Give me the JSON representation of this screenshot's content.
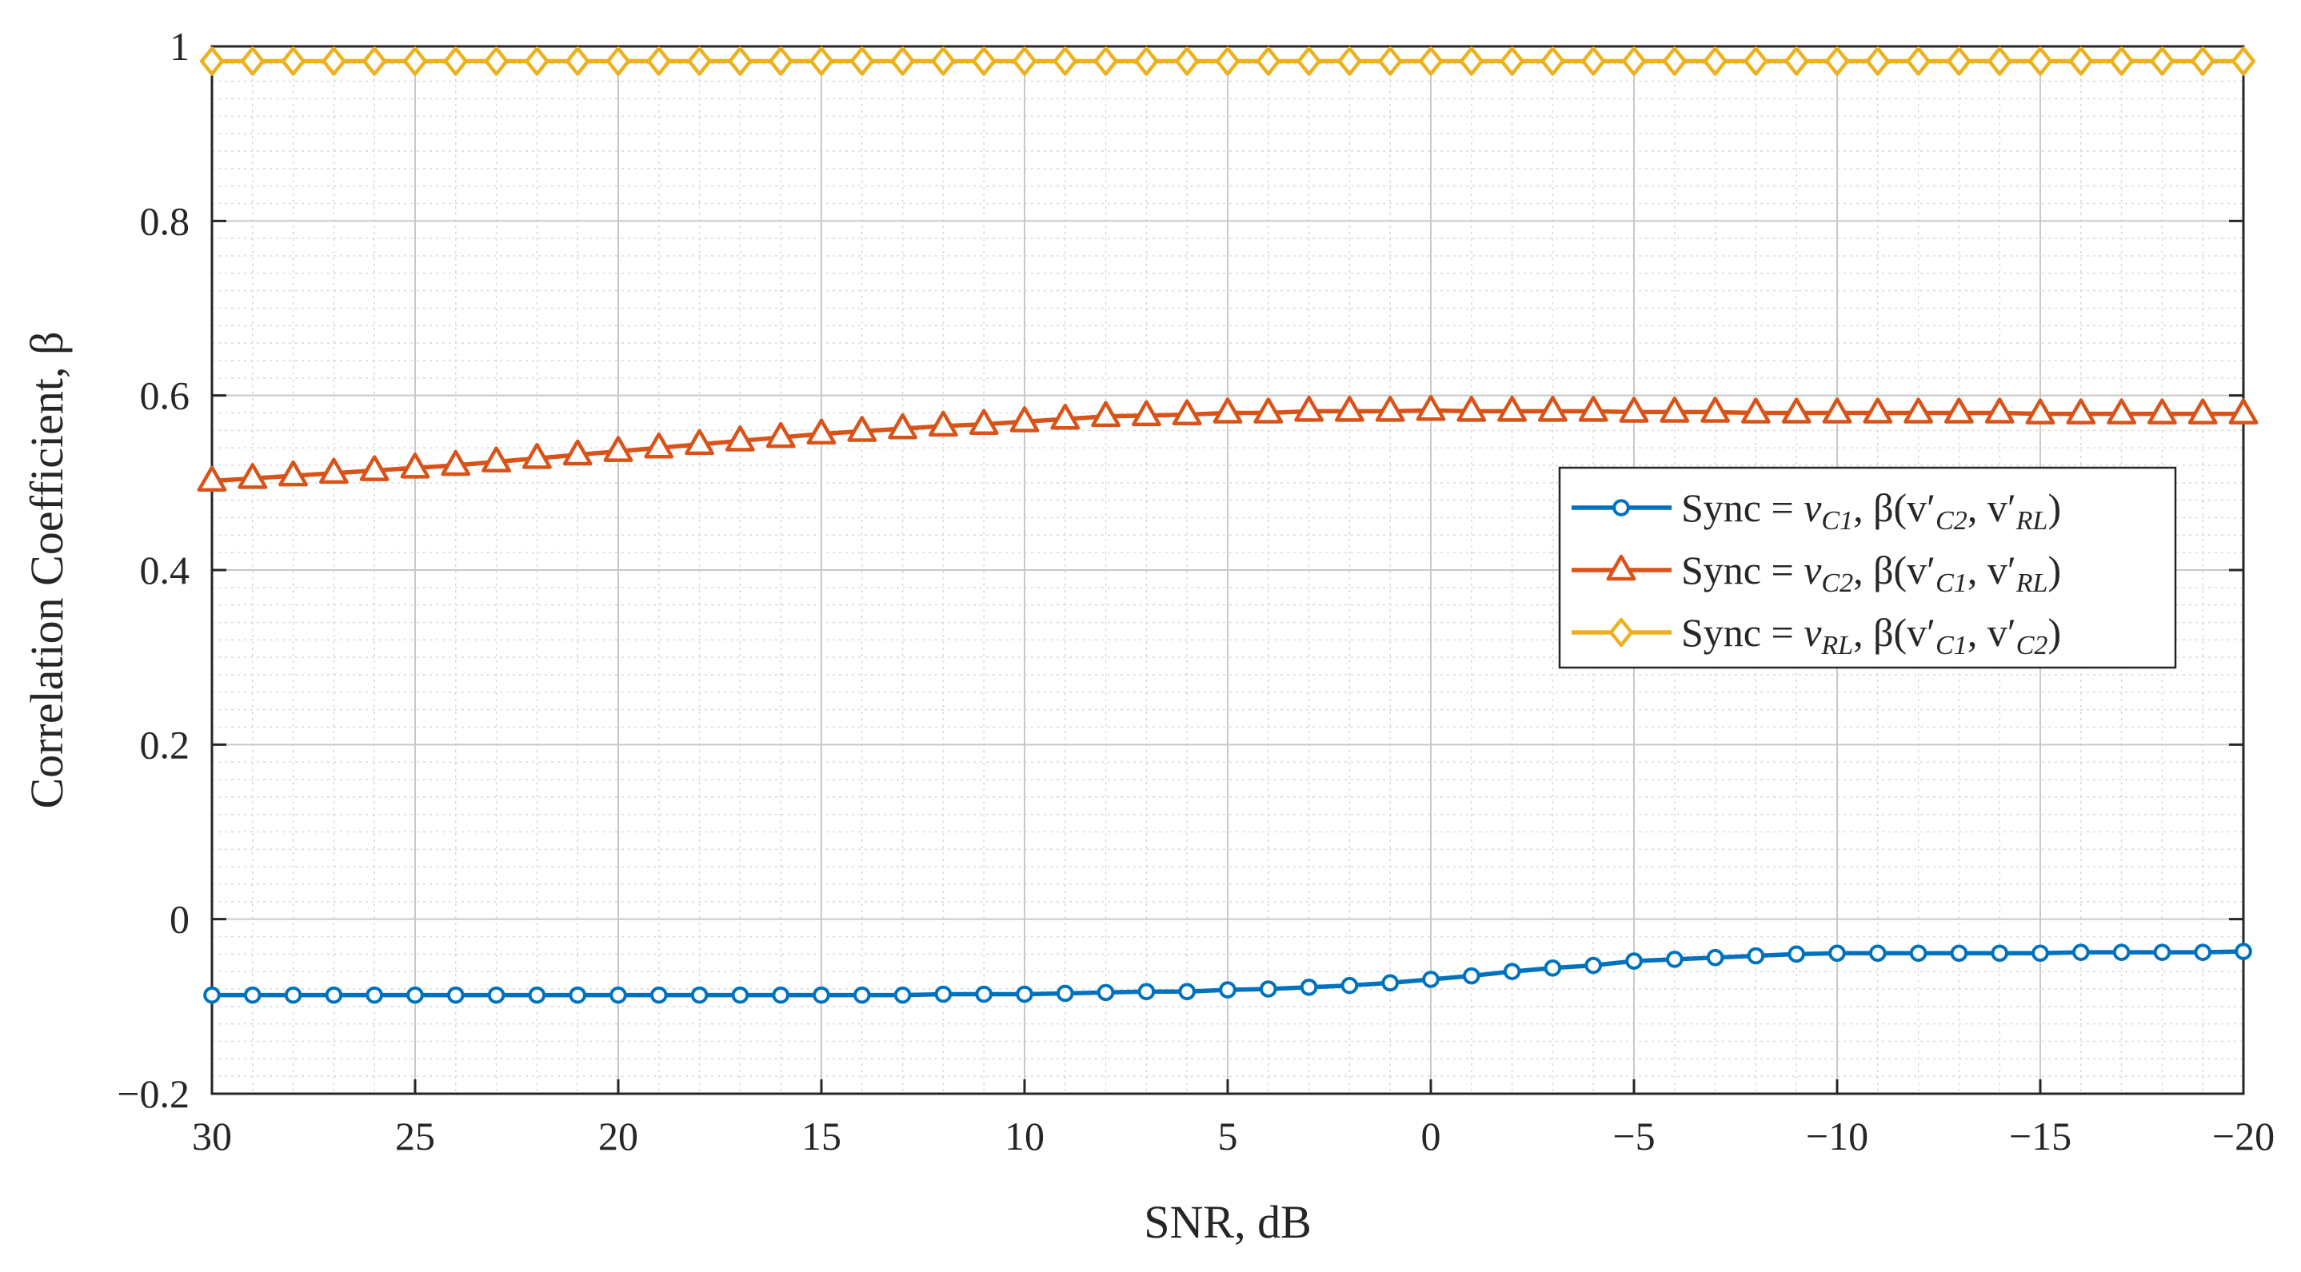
{
  "chart_data": {
    "type": "line",
    "title": "",
    "xlabel": "SNR, dB",
    "ylabel": "Correlation Coefficient, β",
    "xlim": [
      30,
      -20
    ],
    "ylim": [
      -0.2,
      1
    ],
    "x_reversed": true,
    "grid": true,
    "minor_grid": true,
    "legend_position": "center-right",
    "xticks": [
      30,
      25,
      20,
      15,
      10,
      5,
      0,
      -5,
      -10,
      -15,
      -20
    ],
    "xtick_labels": [
      "30",
      "25",
      "20",
      "15",
      "10",
      "5",
      "0",
      "−5",
      "−10",
      "−15",
      "−20"
    ],
    "yticks": [
      -0.2,
      0,
      0.2,
      0.4,
      0.6,
      0.8,
      1
    ],
    "ytick_labels": [
      "−0.2",
      "0",
      "0.2",
      "0.4",
      "0.6",
      "0.8",
      "1"
    ],
    "x": [
      30,
      29,
      28,
      27,
      26,
      25,
      24,
      23,
      22,
      21,
      20,
      19,
      18,
      17,
      16,
      15,
      14,
      13,
      12,
      11,
      10,
      9,
      8,
      7,
      6,
      5,
      4,
      3,
      2,
      1,
      0,
      -1,
      -2,
      -3,
      -4,
      -5,
      -6,
      -7,
      -8,
      -9,
      -10,
      -11,
      -12,
      -13,
      -14,
      -15,
      -16,
      -17,
      -18,
      -19,
      -20
    ],
    "series": [
      {
        "name": "Sync = v_C1, β(v'_C2, v'_RL)",
        "legend_main": "Sync = ",
        "legend_var": "v",
        "legend_var_sub": "C1",
        "legend_beta": ", β(v′",
        "legend_arg1_sub": "C2",
        "legend_mid": ", v′",
        "legend_arg2_sub": "RL",
        "legend_end": ")",
        "color": "#0072BD",
        "marker": "circle",
        "values": [
          -0.087,
          -0.087,
          -0.087,
          -0.087,
          -0.087,
          -0.087,
          -0.087,
          -0.087,
          -0.087,
          -0.087,
          -0.087,
          -0.087,
          -0.087,
          -0.087,
          -0.087,
          -0.087,
          -0.087,
          -0.087,
          -0.086,
          -0.086,
          -0.086,
          -0.085,
          -0.084,
          -0.083,
          -0.083,
          -0.081,
          -0.08,
          -0.078,
          -0.076,
          -0.073,
          -0.069,
          -0.065,
          -0.06,
          -0.056,
          -0.053,
          -0.048,
          -0.046,
          -0.044,
          -0.042,
          -0.04,
          -0.039,
          -0.039,
          -0.039,
          -0.039,
          -0.039,
          -0.039,
          -0.038,
          -0.038,
          -0.038,
          -0.038,
          -0.037
        ]
      },
      {
        "name": "Sync = v_C2, β(v'_C1, v'_RL)",
        "legend_main": "Sync = ",
        "legend_var": "v",
        "legend_var_sub": "C2",
        "legend_beta": ", β(v′",
        "legend_arg1_sub": "C1",
        "legend_mid": ", v′",
        "legend_arg2_sub": "RL",
        "legend_end": ")",
        "color": "#D95319",
        "marker": "triangle",
        "values": [
          0.502,
          0.505,
          0.508,
          0.511,
          0.514,
          0.517,
          0.52,
          0.524,
          0.528,
          0.532,
          0.536,
          0.54,
          0.544,
          0.548,
          0.552,
          0.556,
          0.559,
          0.562,
          0.565,
          0.567,
          0.57,
          0.573,
          0.576,
          0.577,
          0.578,
          0.58,
          0.58,
          0.582,
          0.582,
          0.582,
          0.583,
          0.582,
          0.582,
          0.582,
          0.582,
          0.581,
          0.581,
          0.581,
          0.58,
          0.58,
          0.58,
          0.58,
          0.58,
          0.58,
          0.58,
          0.579,
          0.579,
          0.579,
          0.579,
          0.579,
          0.579
        ]
      },
      {
        "name": "Sync = v_RL, β(v'_C1, v'_C2)",
        "legend_main": "Sync = ",
        "legend_var": "v",
        "legend_var_sub": "RL",
        "legend_beta": ", β(v′",
        "legend_arg1_sub": "C1",
        "legend_mid": ", v′",
        "legend_arg2_sub": "C2",
        "legend_end": ")",
        "color": "#EDB120",
        "marker": "diamond",
        "values": [
          0.983,
          0.983,
          0.983,
          0.983,
          0.983,
          0.983,
          0.983,
          0.983,
          0.983,
          0.983,
          0.983,
          0.983,
          0.983,
          0.983,
          0.983,
          0.983,
          0.983,
          0.983,
          0.983,
          0.983,
          0.983,
          0.983,
          0.983,
          0.983,
          0.983,
          0.983,
          0.983,
          0.983,
          0.983,
          0.983,
          0.983,
          0.983,
          0.983,
          0.983,
          0.983,
          0.983,
          0.983,
          0.983,
          0.983,
          0.983,
          0.983,
          0.983,
          0.983,
          0.983,
          0.983,
          0.983,
          0.983,
          0.983,
          0.983,
          0.983,
          0.983
        ]
      }
    ]
  }
}
